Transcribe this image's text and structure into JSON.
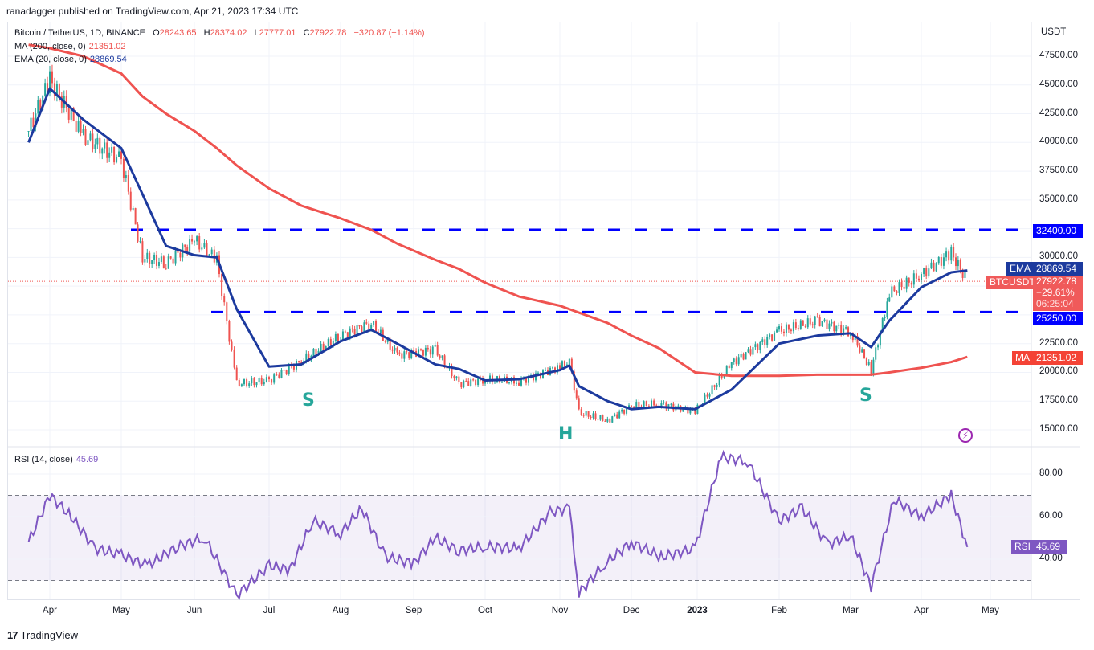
{
  "header": {
    "published": "ranadagger published on TradingView.com, Apr 21, 2023 17:34 UTC"
  },
  "symbol": {
    "title": "Bitcoin / TetherUS, 1D, BINANCE",
    "open_label": "O",
    "open": "28243.65",
    "high_label": "H",
    "high": "28374.02",
    "low_label": "L",
    "low": "27777.01",
    "close_label": "C",
    "close": "27922.78",
    "change": "−320.87 (−1.14%)"
  },
  "indicators": {
    "ma": {
      "label": "MA (200, close, 0)",
      "value": "21351.02",
      "tag": "MA",
      "color": "#ef5350"
    },
    "ema": {
      "label": "EMA (20, close, 0)",
      "value": "28869.54",
      "tag": "EMA",
      "color": "#1c3a9e"
    },
    "rsi": {
      "label": "RSI (14, close)",
      "value": "45.69",
      "tag": "RSI",
      "color": "#7e57c2"
    }
  },
  "price_axis": {
    "currency": "USDT",
    "ticks": [
      "47500.00",
      "45000.00",
      "42500.00",
      "40000.00",
      "37500.00",
      "35000.00",
      "30000.00",
      "22500.00",
      "20000.00",
      "17500.00",
      "15000.00"
    ]
  },
  "price_tags": {
    "resistance": "32400.00",
    "support": "25250.00",
    "symbol_tag": "BTCUSDT",
    "last_price": "27922.78",
    "last_change": "−29.61%",
    "countdown": "06:25:04"
  },
  "rsi_axis": {
    "ticks": [
      "80.00",
      "60.00",
      "40.00"
    ]
  },
  "time_axis": {
    "labels": [
      "Apr",
      "May",
      "Jun",
      "Jul",
      "Aug",
      "Sep",
      "Oct",
      "Nov",
      "Dec",
      "2023",
      "Feb",
      "Mar",
      "Apr",
      "May"
    ]
  },
  "annotations": {
    "left_shoulder": "S",
    "head": "H",
    "right_shoulder": "S"
  },
  "footer": {
    "brand": "TradingView"
  },
  "colors": {
    "up": "#26a69a",
    "down": "#ef5350",
    "level_line": "#0000ff",
    "ema": "#1c3a9e",
    "ma": "#ef5350",
    "rsi": "#7e57c2"
  },
  "chart_data": {
    "type": "line",
    "title": "Bitcoin / TetherUS, 1D, BINANCE",
    "xlabel": "",
    "ylabel": "USDT",
    "ylim": [
      14000,
      49000
    ],
    "x": [
      "2022-03-22",
      "2022-04-01",
      "2022-04-15",
      "2022-05-01",
      "2022-05-10",
      "2022-05-20",
      "2022-06-01",
      "2022-06-10",
      "2022-06-18",
      "2022-07-01",
      "2022-07-15",
      "2022-08-01",
      "2022-08-14",
      "2022-08-25",
      "2022-09-10",
      "2022-09-20",
      "2022-10-01",
      "2022-10-15",
      "2022-11-01",
      "2022-11-05",
      "2022-11-09",
      "2022-11-21",
      "2022-12-01",
      "2022-12-14",
      "2022-12-31",
      "2023-01-14",
      "2023-02-01",
      "2023-02-16",
      "2023-03-01",
      "2023-03-10",
      "2023-03-18",
      "2023-04-01",
      "2023-04-14",
      "2023-04-21"
    ],
    "series": [
      {
        "name": "BTCUSDT close",
        "values": [
          41000,
          45500,
          40500,
          38500,
          30000,
          29500,
          31500,
          29800,
          19000,
          19300,
          21000,
          23200,
          24300,
          21500,
          22000,
          19000,
          19400,
          19200,
          20500,
          21000,
          16500,
          15800,
          17100,
          17300,
          16600,
          20800,
          23600,
          24500,
          23500,
          20200,
          26900,
          28500,
          30400,
          27922
        ]
      },
      {
        "name": "EMA (20)",
        "values": [
          40000,
          44700,
          42000,
          39500,
          35500,
          31000,
          30200,
          30000,
          25500,
          20500,
          20700,
          22700,
          23700,
          22500,
          20700,
          20300,
          19300,
          19400,
          20200,
          20600,
          18800,
          17500,
          16800,
          17000,
          16800,
          18500,
          22500,
          23200,
          23400,
          22200,
          24500,
          27400,
          28700,
          28869
        ]
      },
      {
        "name": "MA (200)",
        "values": [
          48500,
          48200,
          47500,
          46000,
          44000,
          42500,
          41000,
          39500,
          38000,
          36000,
          34500,
          33400,
          32400,
          31200,
          29800,
          29000,
          27800,
          26600,
          25800,
          25500,
          25200,
          24300,
          23200,
          22100,
          20000,
          19700,
          19700,
          19800,
          19800,
          19800,
          20000,
          20400,
          20900,
          21351
        ]
      }
    ],
    "horizontal_levels": [
      {
        "label": "resistance",
        "value": 32400
      },
      {
        "label": "support",
        "value": 25250
      }
    ],
    "pattern_labels": [
      {
        "text": "S",
        "date": "2022-07-10",
        "role": "left shoulder"
      },
      {
        "text": "H",
        "date": "2022-11-09",
        "role": "head"
      },
      {
        "text": "S",
        "date": "2023-03-10",
        "role": "right shoulder"
      }
    ],
    "last_values": {
      "close": 27922.78,
      "ema20": 28869.54,
      "ma200": 21351.02,
      "change_pct": -1.14
    },
    "rsi": {
      "name": "RSI (14, close)",
      "ylim": [
        20,
        95
      ],
      "levels": [
        70,
        50,
        30
      ],
      "x": [
        "2022-03-22",
        "2022-04-01",
        "2022-04-10",
        "2022-04-20",
        "2022-05-01",
        "2022-05-12",
        "2022-05-25",
        "2022-06-05",
        "2022-06-18",
        "2022-07-01",
        "2022-07-10",
        "2022-07-20",
        "2022-08-01",
        "2022-08-10",
        "2022-08-20",
        "2022-09-01",
        "2022-09-10",
        "2022-09-20",
        "2022-10-01",
        "2022-10-15",
        "2022-10-28",
        "2022-11-05",
        "2022-11-09",
        "2022-11-20",
        "2022-12-01",
        "2022-12-15",
        "2022-12-31",
        "2023-01-10",
        "2023-01-20",
        "2023-02-01",
        "2023-02-10",
        "2023-02-20",
        "2023-03-01",
        "2023-03-10",
        "2023-03-20",
        "2023-04-01",
        "2023-04-14",
        "2023-04-21"
      ],
      "values": [
        48,
        70,
        60,
        45,
        42,
        37,
        46,
        50,
        23,
        37,
        35,
        58,
        52,
        64,
        41,
        38,
        50,
        44,
        46,
        45,
        62,
        64,
        24,
        38,
        48,
        41,
        45,
        88,
        86,
        58,
        64,
        47,
        51,
        27,
        68,
        60,
        70,
        45.69
      ]
    }
  }
}
